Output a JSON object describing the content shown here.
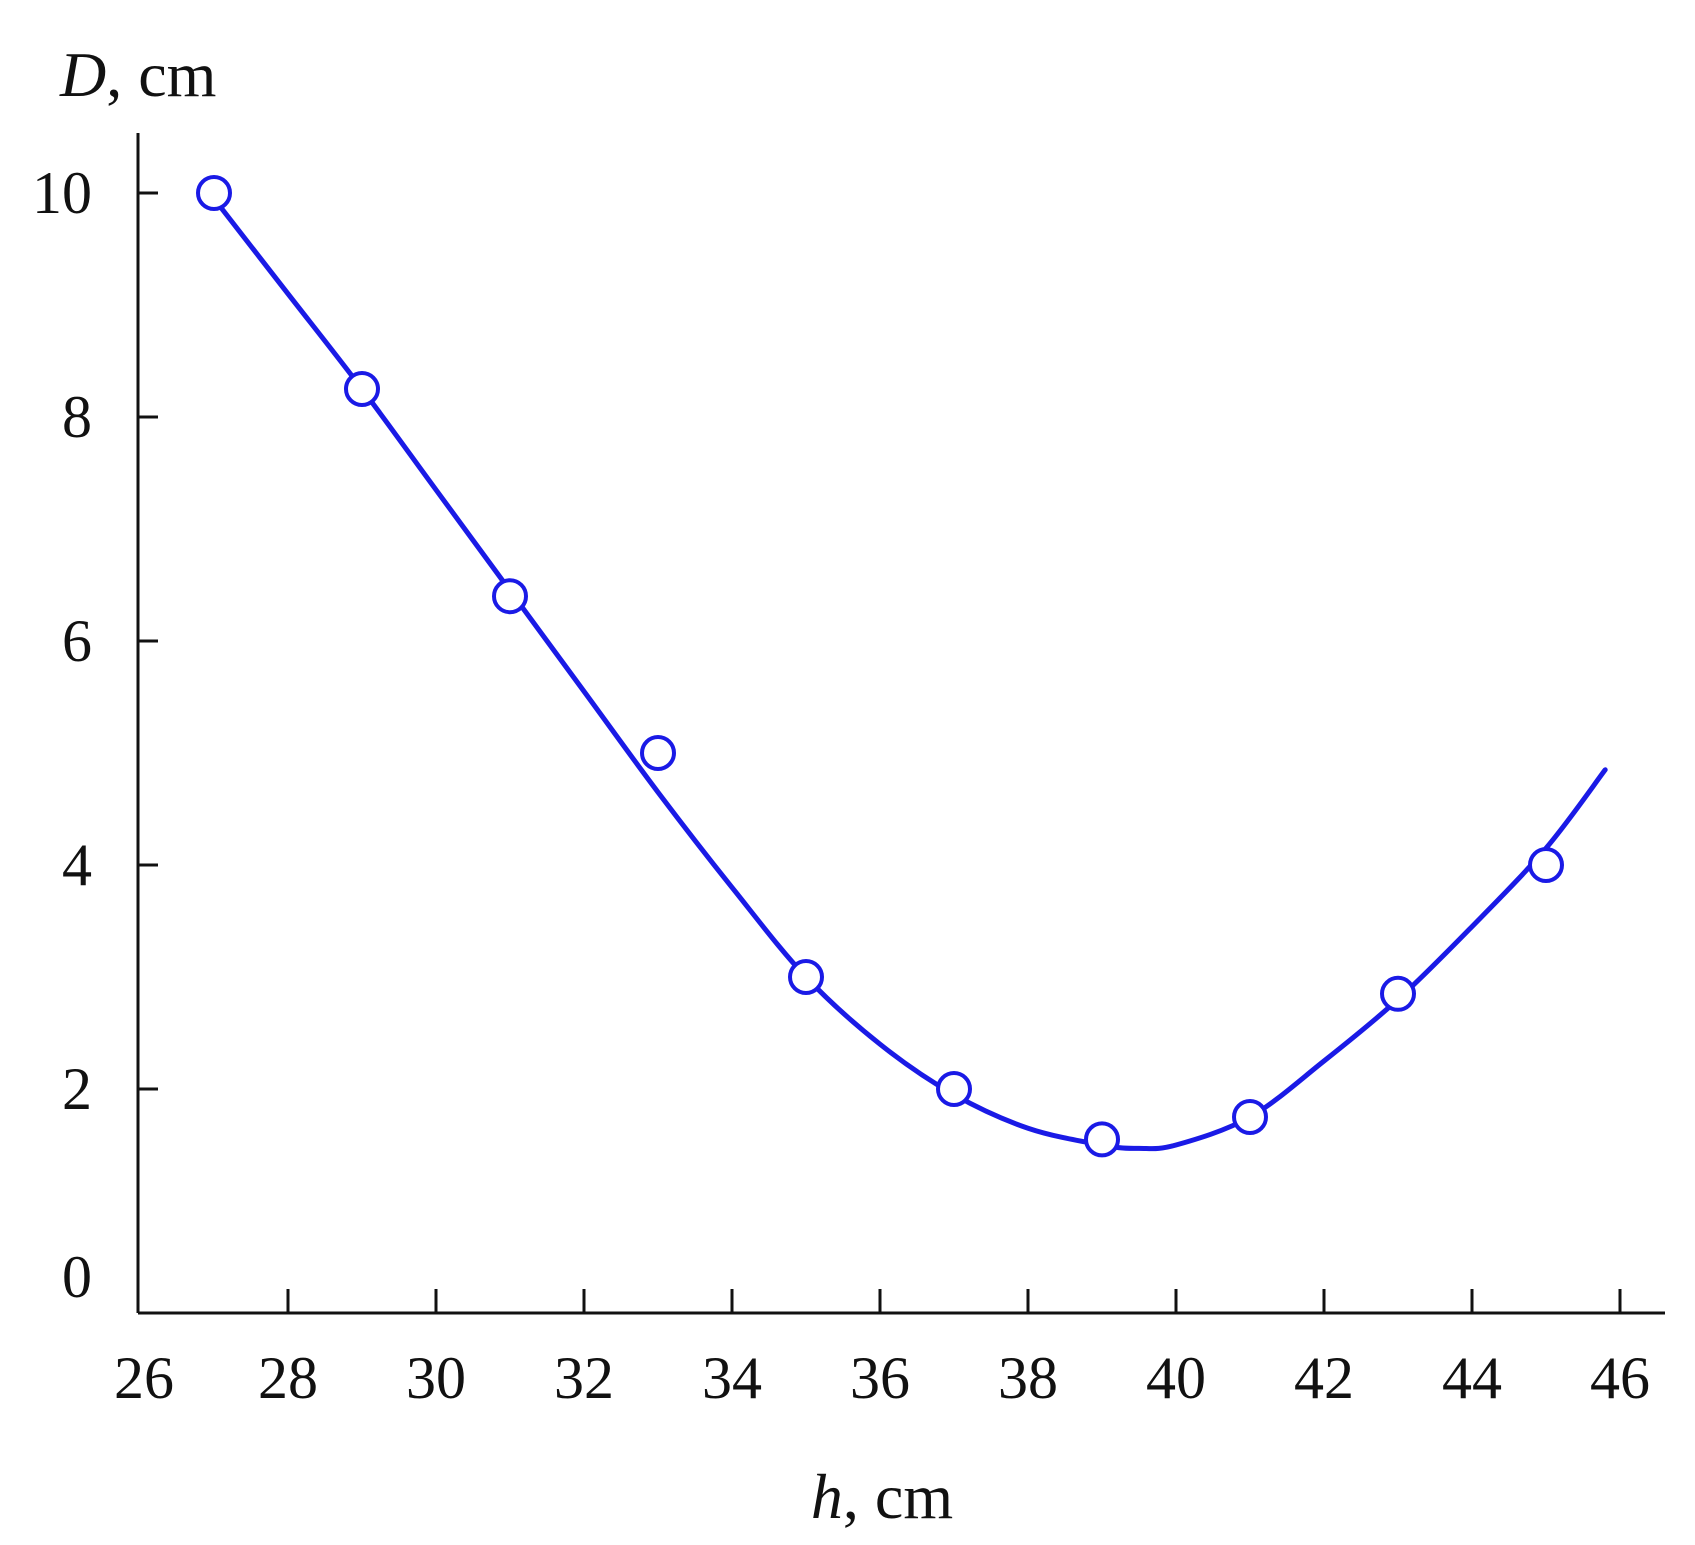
{
  "chart_data": {
    "type": "line",
    "xlabel_symbol": "h",
    "xlabel_unit": ", cm",
    "ylabel_symbol": "D",
    "ylabel_unit": ", cm",
    "xlim": [
      26,
      46
    ],
    "ylim": [
      0,
      10
    ],
    "x_ticks": [
      26,
      28,
      30,
      32,
      34,
      36,
      38,
      40,
      42,
      44,
      46
    ],
    "y_ticks": [
      0,
      2,
      4,
      6,
      8,
      10
    ],
    "grid": false,
    "series": [
      {
        "kind": "points",
        "marker": "open-circle",
        "color": "#1a1ae6",
        "x": [
          27,
          29,
          31,
          33,
          35,
          37,
          39,
          41,
          43,
          45
        ],
        "y": [
          10.0,
          8.25,
          6.4,
          5.0,
          3.0,
          2.0,
          1.55,
          1.75,
          2.85,
          4.0
        ]
      },
      {
        "kind": "fitted-curve",
        "color": "#1a1ae6",
        "x": [
          27,
          28,
          29,
          30,
          31,
          32,
          33,
          34,
          35,
          36,
          37,
          38,
          39,
          39.5,
          40,
          41,
          42,
          43,
          44,
          45,
          45.8
        ],
        "y": [
          9.95,
          9.1,
          8.25,
          7.35,
          6.45,
          5.55,
          4.65,
          3.8,
          3.0,
          2.4,
          1.95,
          1.65,
          1.5,
          1.47,
          1.5,
          1.75,
          2.25,
          2.8,
          3.45,
          4.15,
          4.85
        ]
      }
    ]
  }
}
